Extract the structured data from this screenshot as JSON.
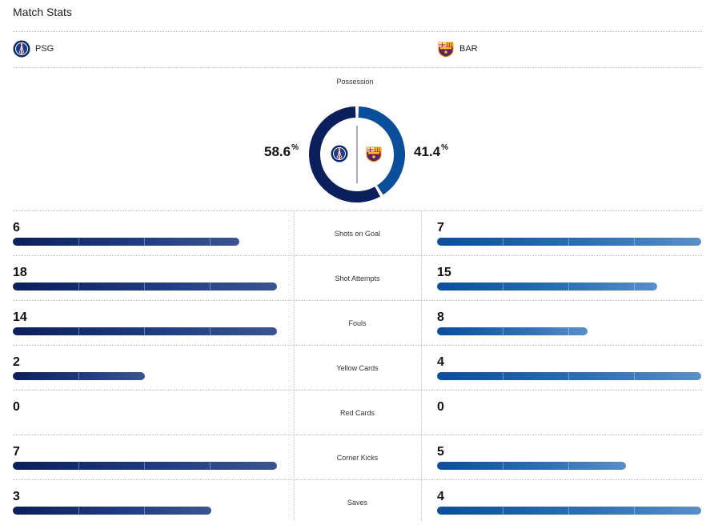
{
  "header": {
    "title": "Match Stats"
  },
  "teams": {
    "home": {
      "abbr": "PSG",
      "logo": "psg-crest-icon",
      "color": "#0b1f5c"
    },
    "away": {
      "abbr": "BAR",
      "logo": "barcelona-crest-icon",
      "color": "#0a4e9c"
    }
  },
  "possession": {
    "label": "Possession",
    "home": "58.6",
    "away": "41.4",
    "unit": "%"
  },
  "stats": [
    {
      "label": "Shots on Goal",
      "home": "6",
      "away": "7",
      "home_fill": 0.857,
      "away_fill": 1.0
    },
    {
      "label": "Shot Attempts",
      "home": "18",
      "away": "15",
      "home_fill": 1.0,
      "away_fill": 0.833
    },
    {
      "label": "Fouls",
      "home": "14",
      "away": "8",
      "home_fill": 1.0,
      "away_fill": 0.571
    },
    {
      "label": "Yellow Cards",
      "home": "2",
      "away": "4",
      "home_fill": 0.5,
      "away_fill": 1.0
    },
    {
      "label": "Red Cards",
      "home": "0",
      "away": "0",
      "home_fill": 0,
      "away_fill": 0
    },
    {
      "label": "Corner Kicks",
      "home": "7",
      "away": "5",
      "home_fill": 1.0,
      "away_fill": 0.714
    },
    {
      "label": "Saves",
      "home": "3",
      "away": "4",
      "home_fill": 0.75,
      "away_fill": 1.0
    }
  ]
}
